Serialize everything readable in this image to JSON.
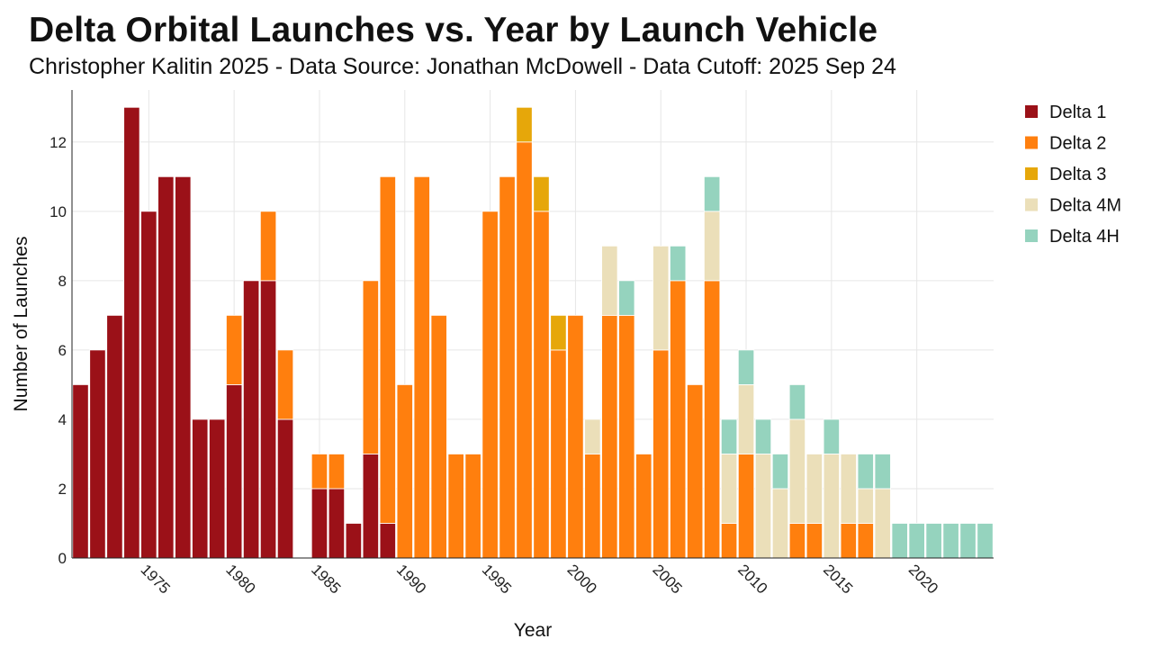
{
  "chart_data": {
    "type": "bar",
    "stacked": true,
    "title": "Delta Orbital Launches vs. Year by Launch Vehicle",
    "subtitle": "Christopher Kalitin 2025 - Data Source: Jonathan McDowell - Data Cutoff: 2025 Sep 24",
    "xlabel": "Year",
    "ylabel": "Number of Launches",
    "xlim": [
      1970.5,
      2024.5
    ],
    "ylim": [
      0,
      13.5
    ],
    "x_ticks": [
      1975,
      1980,
      1985,
      1990,
      1995,
      2000,
      2005,
      2010,
      2015,
      2020
    ],
    "y_ticks": [
      0,
      2,
      4,
      6,
      8,
      10,
      12
    ],
    "grid": true,
    "legend_position": "top-right",
    "years": [
      1971,
      1972,
      1973,
      1974,
      1975,
      1976,
      1977,
      1978,
      1979,
      1980,
      1981,
      1982,
      1983,
      1984,
      1985,
      1986,
      1987,
      1988,
      1989,
      1990,
      1991,
      1992,
      1993,
      1994,
      1995,
      1996,
      1997,
      1998,
      1999,
      2000,
      2001,
      2002,
      2003,
      2004,
      2005,
      2006,
      2007,
      2008,
      2009,
      2010,
      2011,
      2012,
      2013,
      2014,
      2015,
      2016,
      2017,
      2018,
      2019,
      2020,
      2021,
      2022,
      2023,
      2024
    ],
    "series": [
      {
        "name": "Delta 1",
        "color": "#9b1118",
        "values": [
          5,
          6,
          7,
          13,
          10,
          11,
          11,
          4,
          4,
          5,
          8,
          8,
          4,
          0,
          2,
          2,
          1,
          3,
          1,
          0,
          0,
          0,
          0,
          0,
          0,
          0,
          0,
          0,
          0,
          0,
          0,
          0,
          0,
          0,
          0,
          0,
          0,
          0,
          0,
          0,
          0,
          0,
          0,
          0,
          0,
          0,
          0,
          0,
          0,
          0,
          0,
          0,
          0,
          0
        ]
      },
      {
        "name": "Delta 2",
        "color": "#ff7f0e",
        "values": [
          0,
          0,
          0,
          0,
          0,
          0,
          0,
          0,
          0,
          2,
          0,
          2,
          2,
          0,
          1,
          1,
          0,
          5,
          10,
          5,
          11,
          7,
          3,
          3,
          10,
          11,
          12,
          10,
          6,
          7,
          3,
          7,
          7,
          3,
          6,
          8,
          5,
          8,
          1,
          3,
          0,
          0,
          1,
          1,
          0,
          1,
          1,
          0,
          0,
          0,
          0,
          0,
          0,
          0
        ]
      },
      {
        "name": "Delta 3",
        "color": "#e6a70a",
        "values": [
          0,
          0,
          0,
          0,
          0,
          0,
          0,
          0,
          0,
          0,
          0,
          0,
          0,
          0,
          0,
          0,
          0,
          0,
          0,
          0,
          0,
          0,
          0,
          0,
          0,
          0,
          1,
          1,
          1,
          0,
          0,
          0,
          0,
          0,
          0,
          0,
          0,
          0,
          0,
          0,
          0,
          0,
          0,
          0,
          0,
          0,
          0,
          0,
          0,
          0,
          0,
          0,
          0,
          0
        ]
      },
      {
        "name": "Delta 4M",
        "color": "#ebdfb9",
        "values": [
          0,
          0,
          0,
          0,
          0,
          0,
          0,
          0,
          0,
          0,
          0,
          0,
          0,
          0,
          0,
          0,
          0,
          0,
          0,
          0,
          0,
          0,
          0,
          0,
          0,
          0,
          0,
          0,
          0,
          0,
          1,
          2,
          0,
          0,
          3,
          0,
          0,
          2,
          2,
          2,
          3,
          2,
          3,
          2,
          3,
          2,
          1,
          2,
          0,
          0,
          0,
          0,
          0,
          0
        ]
      },
      {
        "name": "Delta 4H",
        "color": "#95d3be",
        "values": [
          0,
          0,
          0,
          0,
          0,
          0,
          0,
          0,
          0,
          0,
          0,
          0,
          0,
          0,
          0,
          0,
          0,
          0,
          0,
          0,
          0,
          0,
          0,
          0,
          0,
          0,
          0,
          0,
          0,
          0,
          0,
          0,
          1,
          0,
          0,
          1,
          0,
          1,
          1,
          1,
          1,
          1,
          1,
          0,
          1,
          0,
          1,
          1,
          1,
          1,
          1,
          1,
          1,
          1
        ]
      }
    ]
  }
}
